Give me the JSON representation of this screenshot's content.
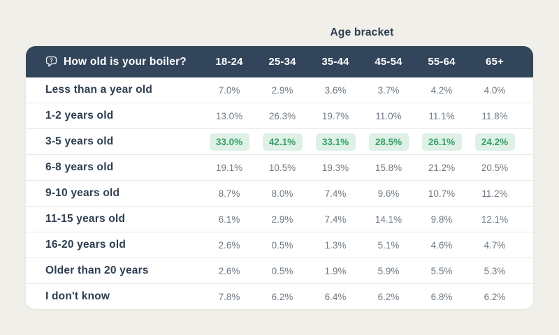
{
  "chart_data": {
    "type": "table",
    "title": "Age bracket",
    "row_header": "How old is your boiler?",
    "columns": [
      "18-24",
      "25-34",
      "35-44",
      "45-54",
      "55-64",
      "65+"
    ],
    "rows": [
      {
        "label": "Less than a year old",
        "values_pct": [
          7.0,
          2.9,
          3.6,
          3.7,
          4.2,
          4.0
        ],
        "highlighted": false
      },
      {
        "label": "1-2 years old",
        "values_pct": [
          13.0,
          26.3,
          19.7,
          11.0,
          11.1,
          11.8
        ],
        "highlighted": false
      },
      {
        "label": "3-5 years old",
        "values_pct": [
          33.0,
          42.1,
          33.1,
          28.5,
          26.1,
          24.2
        ],
        "highlighted": true
      },
      {
        "label": "6-8 years old",
        "values_pct": [
          19.1,
          10.5,
          19.3,
          15.8,
          21.2,
          20.5
        ],
        "highlighted": false
      },
      {
        "label": "9-10 years old",
        "values_pct": [
          8.7,
          8.0,
          7.4,
          9.6,
          10.7,
          11.2
        ],
        "highlighted": false
      },
      {
        "label": "11-15 years old",
        "values_pct": [
          6.1,
          2.9,
          7.4,
          14.1,
          9.8,
          12.1
        ],
        "highlighted": false
      },
      {
        "label": "16-20 years old",
        "values_pct": [
          2.6,
          0.5,
          1.3,
          5.1,
          4.6,
          4.7
        ],
        "highlighted": false
      },
      {
        "label": "Older than 20 years",
        "values_pct": [
          2.6,
          0.5,
          1.9,
          5.9,
          5.5,
          5.3
        ],
        "highlighted": false
      },
      {
        "label": "I don't know",
        "values_pct": [
          7.8,
          6.2,
          6.4,
          6.2,
          6.8,
          6.2
        ],
        "highlighted": false
      }
    ],
    "value_suffix": "%",
    "highlight_note": "Row '3-5 years old' values shown in green highlight pills",
    "legend_position": "none",
    "grid": "horizontal row dividers"
  },
  "icons": {
    "question_bubble": "question-mark-speech-bubble"
  },
  "colors": {
    "page_bg": "#f0efe9",
    "header_bg": "#32455a",
    "header_text": "#ffffff",
    "title_text": "#2d3e50",
    "row_label": "#2d3e50",
    "value_text": "#6f7a84",
    "divider": "#e8e8e5",
    "highlight_bg": "#dff0e7",
    "highlight_text": "#35a266"
  }
}
